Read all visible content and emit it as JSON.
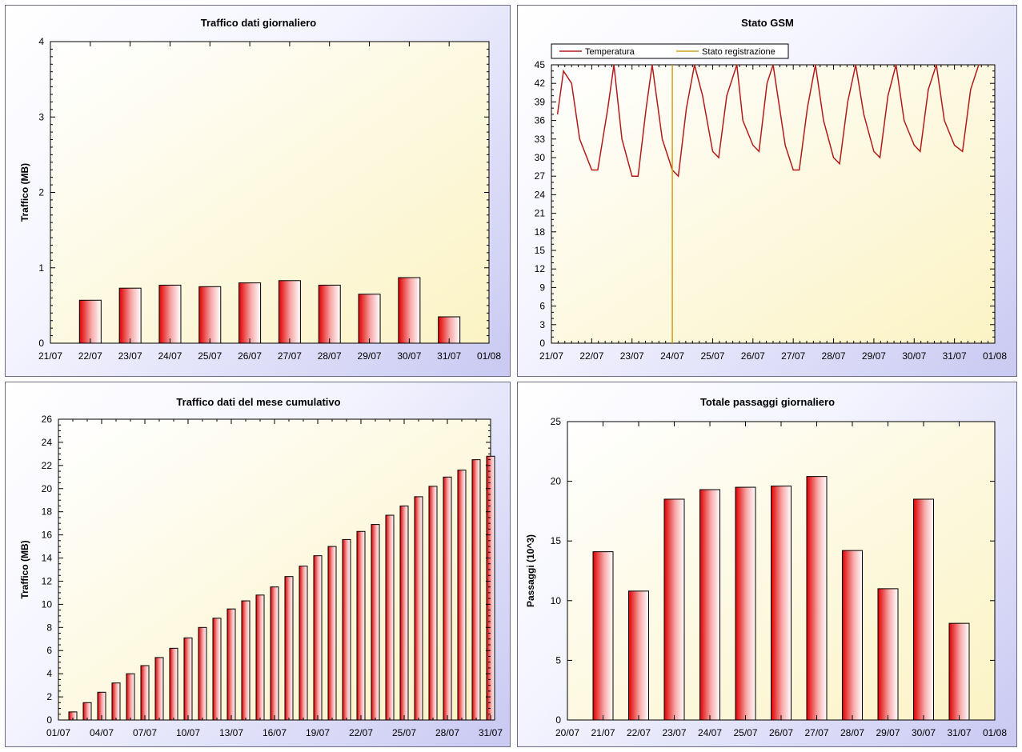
{
  "charts": [
    {
      "title": "Traffico dati giornaliero",
      "ylabel": "Traffico (MB)",
      "type": "bar",
      "ylim": [
        0,
        4
      ],
      "yticks": [
        "0",
        "1",
        "2",
        "3",
        "4"
      ],
      "xticks": [
        "21/07",
        "22/07",
        "23/07",
        "24/07",
        "25/07",
        "26/07",
        "27/07",
        "28/07",
        "29/07",
        "30/07",
        "31/07",
        "01/08"
      ],
      "chart_data": {
        "type": "bar",
        "categories": [
          "22/07",
          "23/07",
          "24/07",
          "25/07",
          "26/07",
          "27/07",
          "28/07",
          "29/07",
          "30/07",
          "31/07"
        ],
        "values": [
          0.57,
          0.73,
          0.77,
          0.75,
          0.8,
          0.83,
          0.77,
          0.65,
          0.87,
          0.35
        ],
        "ylim": [
          0,
          4
        ]
      }
    },
    {
      "title": "Stato GSM",
      "type": "line",
      "ylim": [
        0,
        45
      ],
      "yticks": [
        "0",
        "3",
        "6",
        "9",
        "12",
        "15",
        "18",
        "21",
        "24",
        "27",
        "30",
        "33",
        "36",
        "39",
        "42",
        "45"
      ],
      "xticks": [
        "21/07",
        "22/07",
        "23/07",
        "24/07",
        "25/07",
        "26/07",
        "27/07",
        "28/07",
        "29/07",
        "30/07",
        "31/07",
        "01/08"
      ],
      "legend": [
        "Temperatura",
        "Stato registrazione"
      ],
      "colors": {
        "temperatura": "#b31b1b",
        "stato": "#d4a017"
      },
      "chart_data": {
        "type": "line",
        "x_days_from_21_07": [
          0.15,
          0.3,
          0.5,
          0.7,
          1.0,
          1.15,
          1.4,
          1.55,
          1.75,
          2.0,
          2.15,
          2.35,
          2.5,
          2.75,
          3.0,
          3.15,
          3.35,
          3.55,
          3.75,
          4.0,
          4.15,
          4.35,
          4.6,
          4.75,
          5.0,
          5.15,
          5.35,
          5.5,
          5.8,
          6.0,
          6.15,
          6.35,
          6.55,
          6.75,
          7.0,
          7.15,
          7.35,
          7.55,
          7.75,
          8.0,
          8.15,
          8.35,
          8.55,
          8.75,
          9.0,
          9.15,
          9.35,
          9.55,
          9.75,
          10.0,
          10.2,
          10.4,
          10.6
        ],
        "series": [
          {
            "name": "Temperatura",
            "values": [
              37,
              44,
              42,
              33,
              28,
              28,
              38,
              45,
              33,
              27,
              27,
              38,
              45,
              33,
              28,
              27,
              38,
              45,
              40,
              31,
              30,
              40,
              45,
              36,
              32,
              31,
              42,
              45,
              32,
              28,
              28,
              38,
              45,
              36,
              30,
              29,
              39,
              45,
              37,
              31,
              30,
              40,
              45,
              36,
              32,
              31,
              41,
              45,
              36,
              32,
              31,
              41,
              45
            ]
          },
          {
            "name": "Stato registrazione",
            "x": [
              3.0,
              3.0
            ],
            "values": [
              0,
              45
            ]
          }
        ],
        "ylim": [
          0,
          45
        ]
      }
    },
    {
      "title": "Traffico dati del mese cumulativo",
      "ylabel": "Traffico (MB)",
      "type": "bar",
      "ylim": [
        0,
        26
      ],
      "yticks": [
        "0",
        "2",
        "4",
        "6",
        "8",
        "10",
        "12",
        "14",
        "16",
        "18",
        "20",
        "22",
        "24",
        "26"
      ],
      "xticks": [
        "01/07",
        "04/07",
        "07/07",
        "10/07",
        "13/07",
        "16/07",
        "19/07",
        "22/07",
        "25/07",
        "28/07",
        "31/07"
      ],
      "chart_data": {
        "type": "bar",
        "categories": [
          "02/07",
          "03/07",
          "04/07",
          "05/07",
          "06/07",
          "07/07",
          "08/07",
          "09/07",
          "10/07",
          "11/07",
          "12/07",
          "13/07",
          "14/07",
          "15/07",
          "16/07",
          "17/07",
          "18/07",
          "19/07",
          "20/07",
          "21/07",
          "22/07",
          "23/07",
          "24/07",
          "25/07",
          "26/07",
          "27/07",
          "28/07",
          "29/07",
          "30/07",
          "31/07"
        ],
        "values": [
          0.7,
          1.5,
          2.4,
          3.2,
          4.0,
          4.7,
          5.4,
          6.2,
          7.1,
          8.0,
          8.8,
          9.6,
          10.3,
          10.8,
          11.5,
          12.4,
          13.3,
          14.2,
          15.0,
          15.6,
          16.3,
          16.9,
          17.7,
          18.5,
          19.3,
          20.2,
          21.0,
          21.6,
          22.5,
          22.8
        ],
        "ylim": [
          0,
          26
        ]
      }
    },
    {
      "title": "Totale passaggi giornaliero",
      "ylabel": "Passaggi (10^3)",
      "type": "bar",
      "ylim": [
        0,
        25
      ],
      "yticks": [
        "0",
        "5",
        "10",
        "15",
        "20",
        "25"
      ],
      "xticks": [
        "20/07",
        "21/07",
        "22/07",
        "23/07",
        "24/07",
        "25/07",
        "26/07",
        "27/07",
        "28/07",
        "29/07",
        "30/07",
        "31/07",
        "01/08"
      ],
      "chart_data": {
        "type": "bar",
        "categories": [
          "21/07",
          "22/07",
          "23/07",
          "24/07",
          "25/07",
          "26/07",
          "27/07",
          "28/07",
          "29/07",
          "30/07",
          "31/07"
        ],
        "values": [
          14.1,
          10.8,
          18.5,
          19.3,
          19.5,
          19.6,
          20.4,
          14.2,
          11.0,
          18.5,
          8.1
        ],
        "ylim": [
          0,
          25
        ]
      }
    }
  ]
}
